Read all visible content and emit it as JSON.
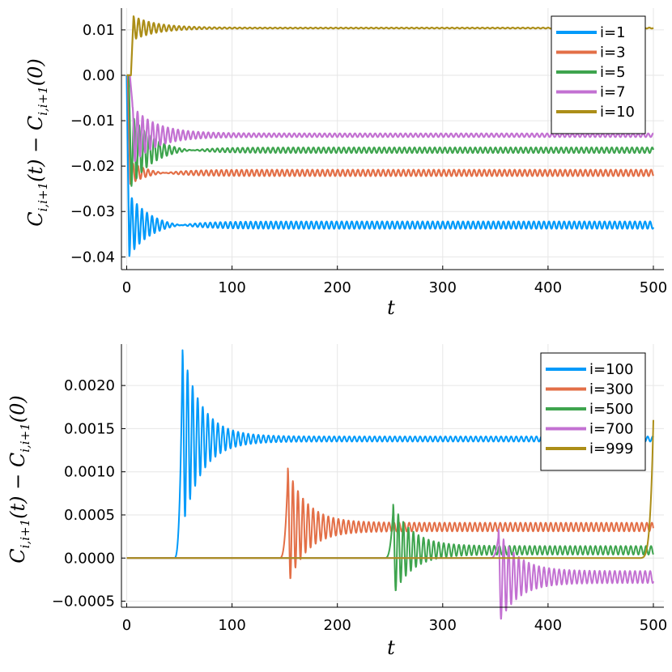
{
  "chart_data": [
    {
      "type": "line",
      "xlabel": "t",
      "ylabel": "C_{i,i+1}(t) − C_{i,i+1}(0)",
      "xlim": [
        -5,
        510
      ],
      "ylim": [
        -0.0428,
        0.0148
      ],
      "xticks": [
        0,
        100,
        200,
        300,
        400,
        500
      ],
      "yticks": [
        0.01,
        0.0,
        -0.01,
        -0.02,
        -0.03,
        -0.04
      ],
      "ytick_labels": [
        "0.01",
        "0.00",
        "−0.01",
        "−0.02",
        "−0.03",
        "−0.04"
      ],
      "legend_position": "top-right",
      "series": [
        {
          "name": "i=1",
          "color": "#009AFA",
          "onset": 0,
          "peak": -0.0415,
          "steady": -0.033,
          "osc": 0.0008,
          "init": 0
        },
        {
          "name": "i=3",
          "color": "#E36F47",
          "onset": 1,
          "peak": -0.025,
          "steady": -0.0215,
          "osc": 0.0007,
          "init": 0
        },
        {
          "name": "i=5",
          "color": "#3EA44E",
          "onset": 2,
          "peak": -0.026,
          "steady": -0.0165,
          "osc": 0.0006,
          "init": 0
        },
        {
          "name": "i=7",
          "color": "#C371D2",
          "onset": 3,
          "peak": -0.0065,
          "steady": -0.0132,
          "osc": 0.0004,
          "init": 0
        },
        {
          "name": "i=10",
          "color": "#AC8E18",
          "onset": 4,
          "peak": 0.0132,
          "steady": 0.0104,
          "osc": 0.0001,
          "init": 0
        }
      ]
    },
    {
      "type": "line",
      "xlabel": "t",
      "ylabel": "C_{i,i+1}(t) − C_{i,i+1}(0)",
      "xlim": [
        -5,
        510
      ],
      "ylim": [
        -0.00057,
        0.00248
      ],
      "xticks": [
        0,
        100,
        200,
        300,
        400,
        500
      ],
      "yticks": [
        0.002,
        0.0015,
        0.001,
        0.0005,
        0.0,
        -0.0005
      ],
      "ytick_labels": [
        "0.0020",
        "0.0015",
        "0.0010",
        "0.0005",
        "0.0000",
        "−0.0005"
      ],
      "legend_position": "top-right",
      "series": [
        {
          "name": "i=100",
          "color": "#009AFA",
          "onset": 53,
          "peak": 0.00238,
          "steady": 0.00138,
          "osc": 3e-05
        },
        {
          "name": "i=300",
          "color": "#E36F47",
          "onset": 153,
          "peak": 0.00099,
          "steady": 0.00036,
          "osc": 5e-05
        },
        {
          "name": "i=500",
          "color": "#3EA44E",
          "onset": 253,
          "peak": 0.00057,
          "steady": 9e-05,
          "osc": 5e-05
        },
        {
          "name": "i=700",
          "color": "#C371D2",
          "onset": 353,
          "peak": 0.00026,
          "steady": -0.00022,
          "osc": 7e-05
        },
        {
          "name": "i=999",
          "color": "#AC8E18",
          "onset": 485,
          "peak": 0.0016,
          "steady": 0.0,
          "osc": 0.0
        }
      ]
    }
  ]
}
